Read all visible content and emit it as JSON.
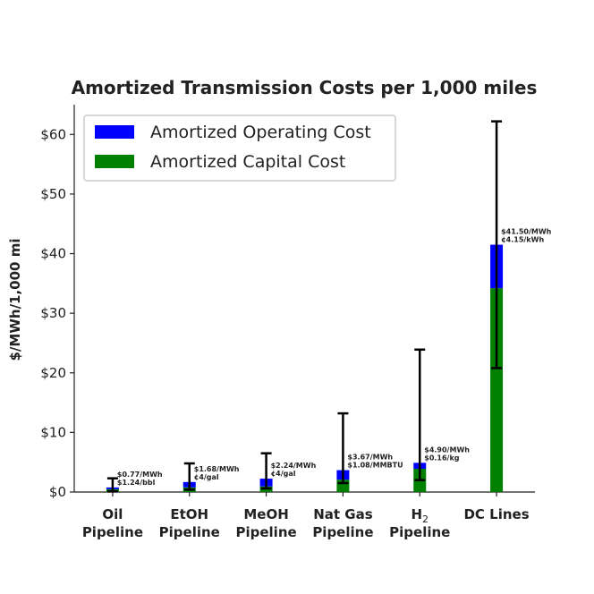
{
  "chart_data": {
    "type": "bar",
    "stacked": true,
    "title": "Amortized Transmission Costs per 1,000 miles",
    "ylabel": "$/MWh/1,000 mi",
    "xlabel": "",
    "ylim": [
      0,
      65
    ],
    "yticks": [
      0,
      10,
      20,
      30,
      40,
      50,
      60
    ],
    "ytick_labels": [
      "$0",
      "$10",
      "$20",
      "$30",
      "$40",
      "$50",
      "$60"
    ],
    "grid": false,
    "legend_position": "top-left",
    "categories": [
      {
        "line1": "Oil",
        "line2": "Pipeline",
        "sub": ""
      },
      {
        "line1": "EtOH",
        "line2": "Pipeline",
        "sub": ""
      },
      {
        "line1": "MeOH",
        "line2": "Pipeline",
        "sub": ""
      },
      {
        "line1": "Nat Gas",
        "line2": "Pipeline",
        "sub": ""
      },
      {
        "line1": "H",
        "line2": "Pipeline",
        "sub": "2"
      },
      {
        "line1": "DC Lines",
        "line2": "",
        "sub": ""
      }
    ],
    "series": [
      {
        "name": "Amortized Operating Cost",
        "color": "#0000ff",
        "values": [
          0.3,
          0.9,
          1.3,
          1.6,
          1.0,
          7.3
        ]
      },
      {
        "name": "Amortized Capital Cost",
        "color": "#008000",
        "values": [
          0.47,
          0.78,
          0.94,
          2.07,
          3.9,
          34.2
        ]
      }
    ],
    "totals": [
      0.77,
      1.68,
      2.24,
      3.67,
      4.9,
      41.5
    ],
    "error_bars": [
      {
        "low": 0.1,
        "high": 2.3
      },
      {
        "low": 0.4,
        "high": 4.8
      },
      {
        "low": 0.6,
        "high": 6.5
      },
      {
        "low": 1.5,
        "high": 13.2
      },
      {
        "low": 2.0,
        "high": 23.9
      },
      {
        "low": 20.8,
        "high": 62.2
      }
    ],
    "annotations": [
      {
        "line1": "$0.77/MWh",
        "line2": "$1.24/bbl"
      },
      {
        "line1": "$1.68/MWh",
        "line2": "¢4/gal"
      },
      {
        "line1": "$2.24/MWh",
        "line2": "¢4/gal"
      },
      {
        "line1": "$3.67/MWh",
        "line2": "$1.08/MMBTU"
      },
      {
        "line1": "$4.90/MWh",
        "line2": "$0.16/kg"
      },
      {
        "line1": "$41.50/MWh",
        "line2": "¢4.15/kWh"
      }
    ]
  }
}
